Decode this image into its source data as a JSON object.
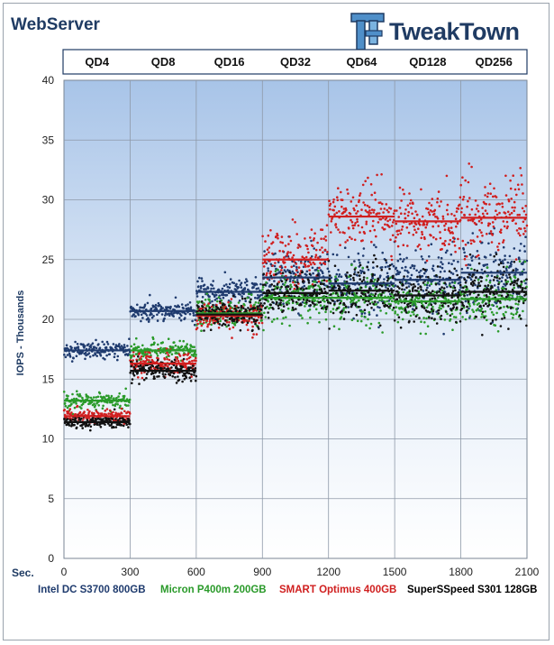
{
  "title": "WebServer",
  "logo": {
    "text": "TweakTown",
    "icon": "tweaktown-tt-logo-icon"
  },
  "chart_data": {
    "type": "scatter",
    "title": "WebServer",
    "xlabel": "Sec.",
    "ylabel": "IOPS - Thousands",
    "xlim": [
      0,
      2100
    ],
    "ylim": [
      0,
      40
    ],
    "x_ticks": [
      0,
      300,
      600,
      900,
      1200,
      1500,
      1800,
      2100
    ],
    "y_ticks": [
      0,
      5,
      10,
      15,
      20,
      25,
      30,
      35,
      40
    ],
    "grid": true,
    "legend": "bottom",
    "phases": [
      {
        "label": "QD4",
        "start": 0,
        "end": 300
      },
      {
        "label": "QD8",
        "start": 300,
        "end": 600
      },
      {
        "label": "QD16",
        "start": 600,
        "end": 900
      },
      {
        "label": "QD32",
        "start": 900,
        "end": 1200
      },
      {
        "label": "QD64",
        "start": 1200,
        "end": 1500
      },
      {
        "label": "QD128",
        "start": 1500,
        "end": 1800
      },
      {
        "label": "QD256",
        "start": 1800,
        "end": 2100
      }
    ],
    "series": [
      {
        "name": "Intel DC S3700 800GB",
        "color": "#1f3b6e",
        "avg": [
          17.4,
          20.7,
          22.3,
          23.5,
          23.0,
          23.3,
          23.9
        ],
        "spread": [
          0.35,
          0.35,
          0.5,
          1.2,
          1.4,
          1.4,
          1.5
        ]
      },
      {
        "name": "Micron P400m 200GB",
        "color": "#2a9a2a",
        "avg": [
          13.2,
          17.4,
          20.5,
          21.8,
          21.8,
          21.5,
          21.7
        ],
        "spread": [
          0.3,
          0.4,
          0.6,
          0.9,
          1.0,
          1.0,
          1.1
        ]
      },
      {
        "name": "SMART Optimus 400GB",
        "color": "#d01f1f",
        "avg": [
          11.9,
          16.3,
          20.3,
          25.0,
          28.6,
          28.2,
          28.5
        ],
        "spread": [
          0.3,
          0.5,
          0.6,
          1.3,
          1.3,
          1.4,
          1.5
        ]
      },
      {
        "name": "SuperSSpeed S301 128GB",
        "color": "#111111",
        "avg": [
          11.4,
          15.7,
          20.4,
          22.2,
          22.4,
          22.0,
          22.3
        ],
        "spread": [
          0.25,
          0.4,
          0.6,
          0.9,
          1.1,
          1.1,
          1.2
        ]
      }
    ]
  }
}
